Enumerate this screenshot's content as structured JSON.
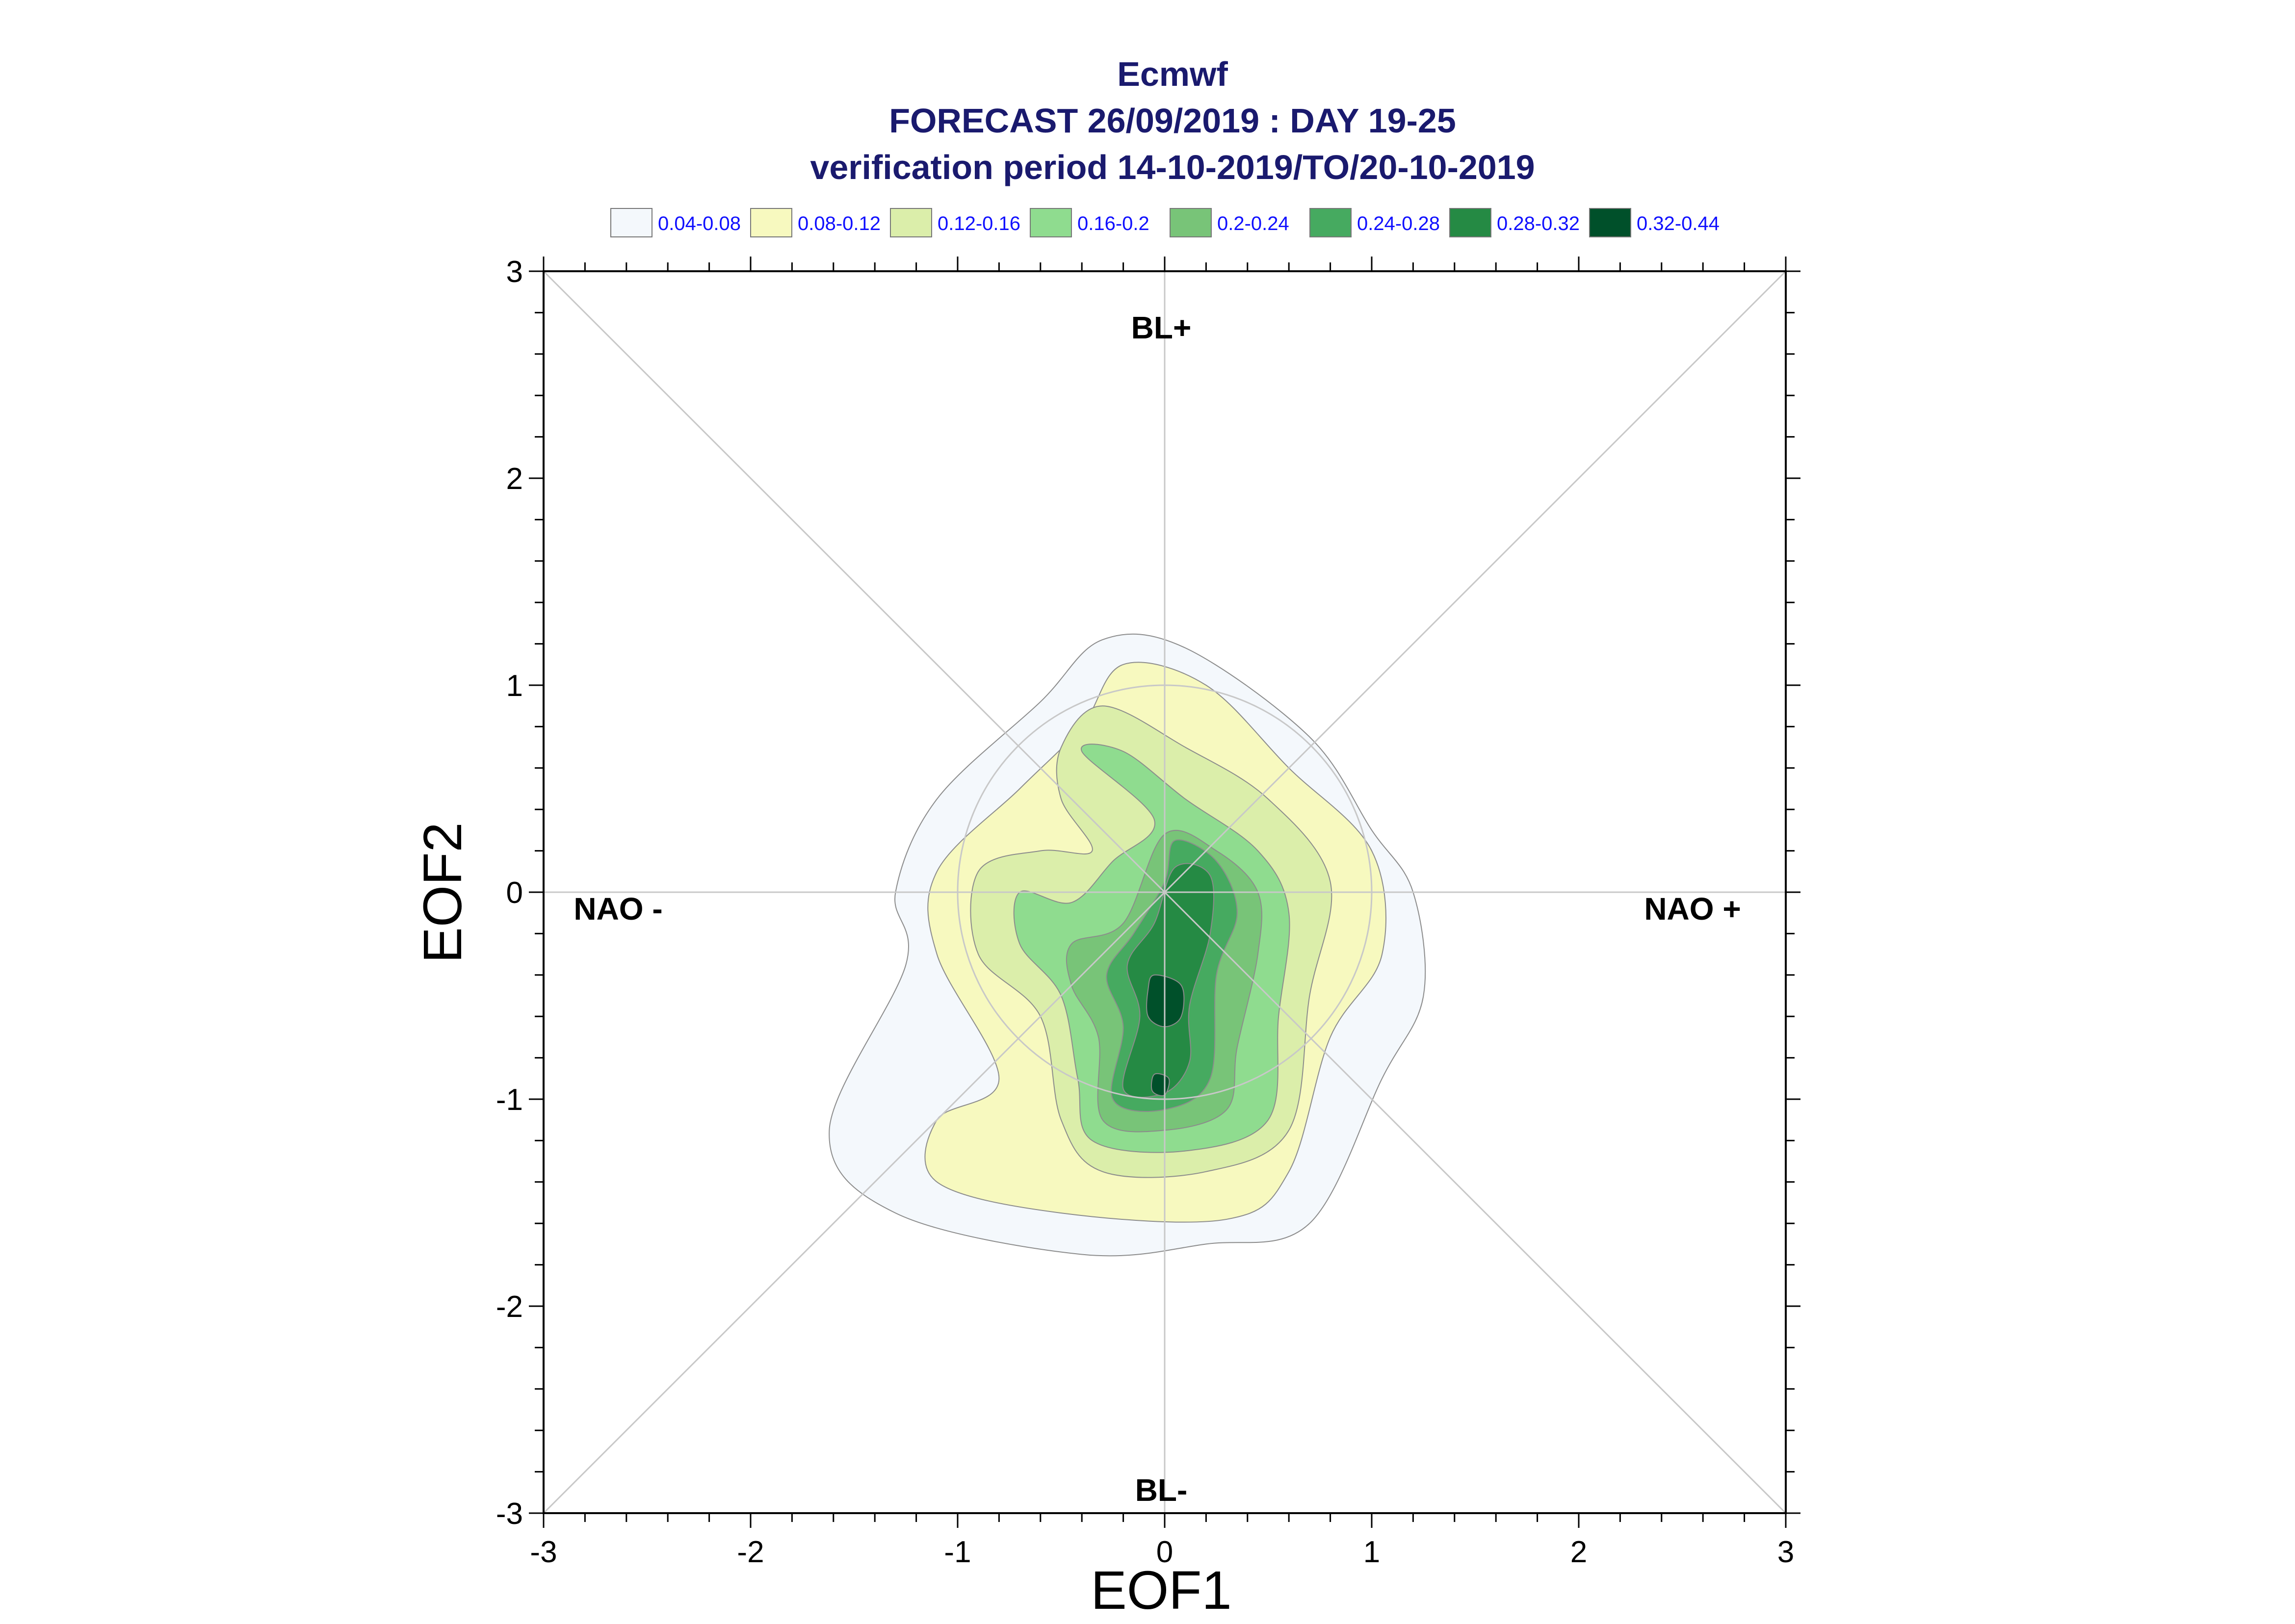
{
  "chart_data": {
    "type": "contour",
    "title_lines": [
      "Ecmwf",
      "FORECAST 26/09/2019 : DAY 19-25",
      "verification period 14-10-2019/TO/20-10-2019"
    ],
    "xlabel": "EOF1",
    "ylabel": "EOF2",
    "xlim": [
      -3,
      3
    ],
    "ylim": [
      -3,
      3
    ],
    "xticks": [
      "-3",
      "-2",
      "-1",
      "0",
      "1",
      "2",
      "3"
    ],
    "yticks": [
      "-3",
      "-2",
      "-1",
      "0",
      "1",
      "2",
      "3"
    ],
    "regime_labels": {
      "top": "BL+",
      "bottom": "BL-",
      "left": "NAO -",
      "right": "NAO +"
    },
    "legend": [
      {
        "label": "0.04-0.08",
        "color": "#f4f8fc"
      },
      {
        "label": "0.08-0.12",
        "color": "#f7f9bf"
      },
      {
        "label": "0.12-0.16",
        "color": "#dbeeaa"
      },
      {
        "label": "0.16-0.2",
        "color": "#8fdc8f"
      },
      {
        "label": "0.2-0.24",
        "color": "#78c478"
      },
      {
        "label": "0.24-0.28",
        "color": "#46aa60"
      },
      {
        "label": "0.28-0.32",
        "color": "#258a44"
      },
      {
        "label": "0.32-0.44",
        "color": "#00502a"
      }
    ],
    "contours": [
      {
        "level": "0.04-0.08",
        "points": [
          [
            -0.6,
            0.92
          ],
          [
            -0.3,
            1.22
          ],
          [
            0.1,
            1.18
          ],
          [
            0.7,
            0.75
          ],
          [
            1.0,
            0.3
          ],
          [
            1.2,
            0.0
          ],
          [
            1.25,
            -0.5
          ],
          [
            1.05,
            -0.9
          ],
          [
            0.7,
            -1.6
          ],
          [
            0.2,
            -1.7
          ],
          [
            -0.4,
            -1.75
          ],
          [
            -1.3,
            -1.55
          ],
          [
            -1.62,
            -1.15
          ],
          [
            -1.25,
            -0.35
          ],
          [
            -1.3,
            0.0
          ],
          [
            -1.1,
            0.45
          ]
        ]
      },
      {
        "level": "0.08-0.12",
        "points": [
          [
            -0.4,
            0.8
          ],
          [
            -0.2,
            1.1
          ],
          [
            0.2,
            1.0
          ],
          [
            0.6,
            0.6
          ],
          [
            1.0,
            0.2
          ],
          [
            1.05,
            -0.3
          ],
          [
            0.8,
            -0.7
          ],
          [
            0.6,
            -1.35
          ],
          [
            0.3,
            -1.58
          ],
          [
            -0.5,
            -1.55
          ],
          [
            -1.1,
            -1.4
          ],
          [
            -1.1,
            -1.1
          ],
          [
            -0.8,
            -0.9
          ],
          [
            -1.1,
            -0.3
          ],
          [
            -1.1,
            0.1
          ],
          [
            -0.7,
            0.5
          ]
        ]
      },
      {
        "level": "0.12-0.16",
        "points": [
          [
            -0.5,
            0.7
          ],
          [
            -0.3,
            0.9
          ],
          [
            0.1,
            0.7
          ],
          [
            0.5,
            0.45
          ],
          [
            0.8,
            0.05
          ],
          [
            0.7,
            -0.5
          ],
          [
            0.6,
            -1.15
          ],
          [
            0.2,
            -1.35
          ],
          [
            -0.3,
            -1.35
          ],
          [
            -0.5,
            -1.1
          ],
          [
            -0.6,
            -0.6
          ],
          [
            -0.9,
            -0.3
          ],
          [
            -0.9,
            0.1
          ],
          [
            -0.6,
            0.2
          ],
          [
            -0.35,
            0.2
          ],
          [
            -0.5,
            0.45
          ]
        ]
      },
      {
        "level": "0.16-0.2",
        "points": [
          [
            -0.4,
            0.68
          ],
          [
            -0.2,
            0.68
          ],
          [
            0.1,
            0.45
          ],
          [
            0.45,
            0.2
          ],
          [
            0.6,
            -0.1
          ],
          [
            0.55,
            -0.6
          ],
          [
            0.5,
            -1.1
          ],
          [
            0.1,
            -1.25
          ],
          [
            -0.35,
            -1.2
          ],
          [
            -0.42,
            -0.9
          ],
          [
            -0.5,
            -0.5
          ],
          [
            -0.7,
            -0.25
          ],
          [
            -0.7,
            0.0
          ],
          [
            -0.45,
            -0.05
          ],
          [
            -0.25,
            0.15
          ],
          [
            -0.05,
            0.35
          ]
        ]
      },
      {
        "level": "0.2-0.24",
        "points": [
          [
            0.0,
            0.28
          ],
          [
            0.25,
            0.2
          ],
          [
            0.45,
            0.0
          ],
          [
            0.45,
            -0.3
          ],
          [
            0.35,
            -0.75
          ],
          [
            0.3,
            -1.05
          ],
          [
            0.0,
            -1.15
          ],
          [
            -0.3,
            -1.1
          ],
          [
            -0.32,
            -0.7
          ],
          [
            -0.45,
            -0.45
          ],
          [
            -0.45,
            -0.25
          ],
          [
            -0.2,
            -0.15
          ]
        ]
      },
      {
        "level": "0.24-0.28",
        "points": [
          [
            0.05,
            0.25
          ],
          [
            0.25,
            0.15
          ],
          [
            0.35,
            -0.1
          ],
          [
            0.25,
            -0.4
          ],
          [
            0.22,
            -0.9
          ],
          [
            0.0,
            -1.05
          ],
          [
            -0.25,
            -1.0
          ],
          [
            -0.2,
            -0.65
          ],
          [
            -0.28,
            -0.4
          ],
          [
            -0.15,
            -0.2
          ],
          [
            0.0,
            0.05
          ]
        ]
      },
      {
        "level": "0.28-0.32",
        "points": [
          [
            0.05,
            0.12
          ],
          [
            0.22,
            0.08
          ],
          [
            0.22,
            -0.2
          ],
          [
            0.12,
            -0.55
          ],
          [
            0.12,
            -0.82
          ],
          [
            0.0,
            -0.97
          ],
          [
            -0.2,
            -0.95
          ],
          [
            -0.12,
            -0.6
          ],
          [
            -0.18,
            -0.35
          ],
          [
            -0.05,
            -0.15
          ]
        ]
      },
      {
        "level": "0.32-0.44",
        "points": [
          [
            -0.05,
            -0.4
          ],
          [
            0.08,
            -0.45
          ],
          [
            0.08,
            -0.6
          ],
          [
            0.0,
            -0.65
          ],
          [
            -0.08,
            -0.6
          ],
          [
            -0.08,
            -0.47
          ]
        ]
      },
      {
        "level": "0.32-0.44",
        "points": [
          [
            -0.05,
            -0.88
          ],
          [
            0.02,
            -0.9
          ],
          [
            0.0,
            -0.98
          ],
          [
            -0.06,
            -0.96
          ]
        ]
      }
    ]
  }
}
